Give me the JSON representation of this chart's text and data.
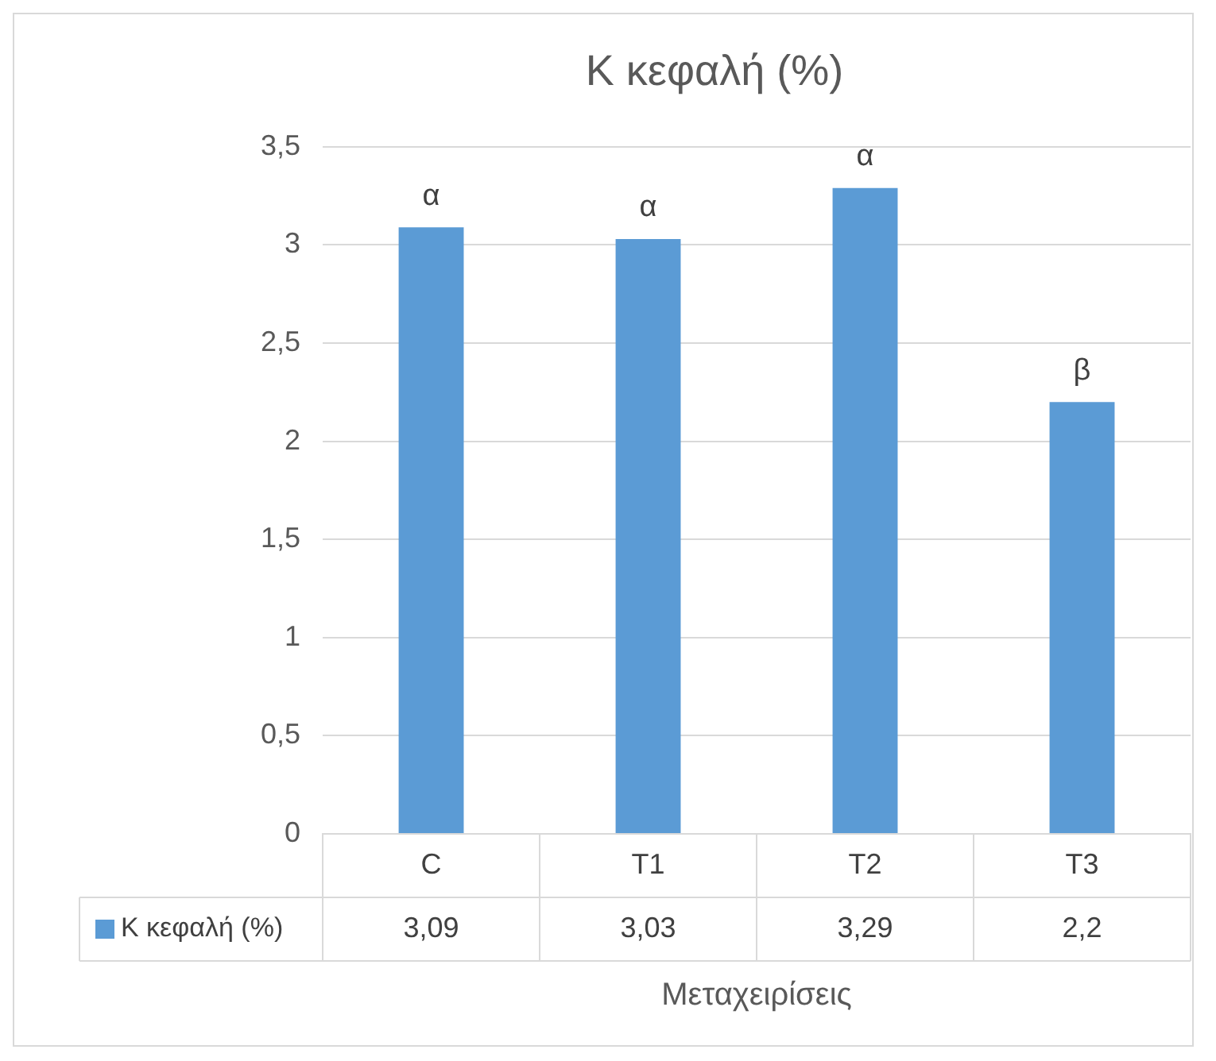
{
  "chart_data": {
    "type": "bar",
    "title": "Κ κεφαλή (%)",
    "xlabel": "Μεταχειρίσεις",
    "categories": [
      "C",
      "T1",
      "T2",
      "T3"
    ],
    "series": [
      {
        "name": "Κ κεφαλή (%)",
        "color": "#5b9bd5",
        "values": [
          3.09,
          3.03,
          3.29,
          2.2
        ],
        "value_labels": [
          "3,09",
          "3,03",
          "3,29",
          "2,2"
        ]
      }
    ],
    "ylim": [
      0,
      3.5
    ],
    "yticks": [
      0,
      {
        "value": 0.5,
        "label": "0,5"
      },
      1,
      {
        "value": 1.5,
        "label": "1,5"
      },
      2,
      {
        "value": 2.5,
        "label": "2,5"
      },
      3,
      {
        "value": 3.5,
        "label": "3,5"
      }
    ],
    "grid": "y",
    "legend": "bottom left",
    "annotations": [
      {
        "text": "α",
        "x": "C",
        "y": 3.09
      },
      {
        "text": "α",
        "x": "T1",
        "y": 3.03
      },
      {
        "text": "α",
        "x": "T2",
        "y": 3.29
      },
      {
        "text": "β",
        "x": "T3",
        "y": 2.2
      }
    ]
  }
}
